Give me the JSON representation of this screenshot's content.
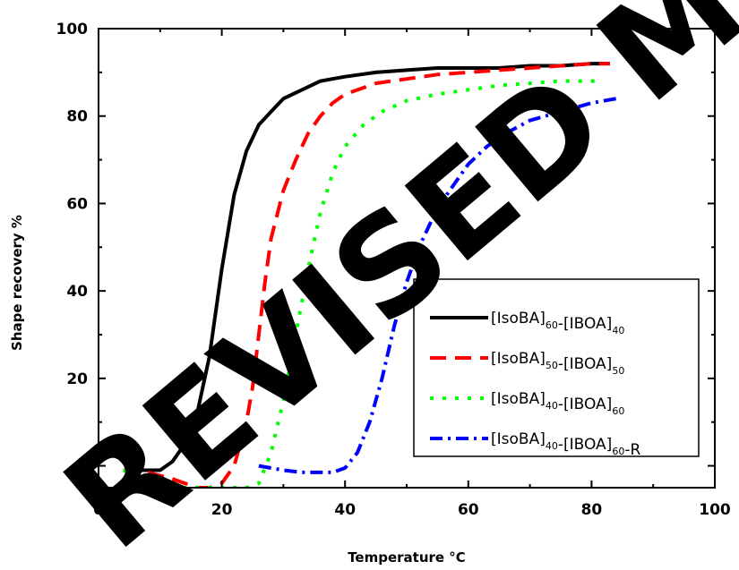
{
  "chart_data": {
    "type": "line",
    "title": "",
    "xlabel": "Temperature °C",
    "ylabel": "Shape recovery %",
    "xlim": [
      0,
      100
    ],
    "ylim": [
      -5,
      100
    ],
    "xticks": [
      0,
      20,
      40,
      60,
      80,
      100
    ],
    "yticks": [
      0,
      20,
      40,
      60,
      80,
      100
    ],
    "xtick_labels": [
      "0",
      "20",
      "40",
      "60",
      "80",
      "100"
    ],
    "ytick_labels": [
      "0",
      "20",
      "40",
      "60",
      "80",
      "100"
    ],
    "grid": false,
    "legend_position": "lower-right",
    "watermark": "REVISED MANUSCRIPT",
    "series": [
      {
        "name_main": "[IsoBA]",
        "sub1": "60",
        "mid": "-[IBOA]",
        "sub2": "40",
        "suffix": "",
        "color": "#000000",
        "dash": "solid",
        "x": [
          5,
          8,
          10,
          12,
          14,
          16,
          18,
          20,
          22,
          24,
          26,
          28,
          30,
          33,
          36,
          40,
          45,
          50,
          55,
          60,
          65,
          70,
          75,
          80,
          83
        ],
        "y": [
          -1,
          -1,
          -1,
          1,
          5,
          12,
          25,
          45,
          62,
          72,
          78,
          81,
          84,
          86,
          88,
          89,
          90,
          90.5,
          91,
          91,
          91,
          91.5,
          91.5,
          92,
          92
        ]
      },
      {
        "name_main": "[IsoBA]",
        "sub1": "50",
        "mid": "-[IBOA]",
        "sub2": "50",
        "suffix": "",
        "color": "#ff0000",
        "dash": "dashed",
        "x": [
          4,
          8,
          12,
          16,
          18,
          20,
          22,
          24,
          25,
          26,
          27,
          28,
          30,
          32,
          34,
          36,
          38,
          40,
          45,
          50,
          55,
          60,
          65,
          70,
          75,
          80,
          83
        ],
        "y": [
          -1,
          -1.5,
          -3,
          -5,
          -5,
          -4,
          0,
          10,
          18,
          30,
          42,
          52,
          63,
          70,
          76,
          80,
          83,
          85,
          87.5,
          88.5,
          89.5,
          90,
          90.5,
          91,
          91.5,
          92,
          92
        ]
      },
      {
        "name_main": "[IsoBA]",
        "sub1": "40",
        "mid": "-[IBOA]",
        "sub2": "60",
        "suffix": "",
        "color": "#00ff00",
        "dash": "dotted",
        "x": [
          4,
          8,
          12,
          16,
          20,
          24,
          26,
          28,
          30,
          32,
          34,
          36,
          38,
          40,
          43,
          46,
          50,
          55,
          60,
          65,
          70,
          75,
          80,
          81
        ],
        "y": [
          -1,
          -3,
          -5,
          -5,
          -5,
          -5,
          -4,
          3,
          15,
          30,
          45,
          58,
          67,
          73,
          78,
          81,
          83.5,
          85,
          86,
          87,
          87.5,
          88,
          88,
          88
        ]
      },
      {
        "name_main": "[IsoBA]",
        "sub1": "40",
        "mid": "-[IBOA]",
        "sub2": "60",
        "suffix": "-R",
        "color": "#0000ff",
        "dash": "dashdot",
        "x": [
          26,
          28,
          30,
          33,
          36,
          38,
          40,
          42,
          44,
          46,
          48,
          50,
          52,
          54,
          56,
          58,
          60,
          63,
          66,
          70,
          75,
          80,
          84
        ],
        "y": [
          0,
          -0.5,
          -1,
          -1.5,
          -1.5,
          -1.5,
          -0.5,
          3,
          10,
          20,
          32,
          42,
          50,
          56,
          61,
          65,
          69,
          73,
          76,
          79,
          81,
          83,
          84
        ]
      }
    ]
  }
}
